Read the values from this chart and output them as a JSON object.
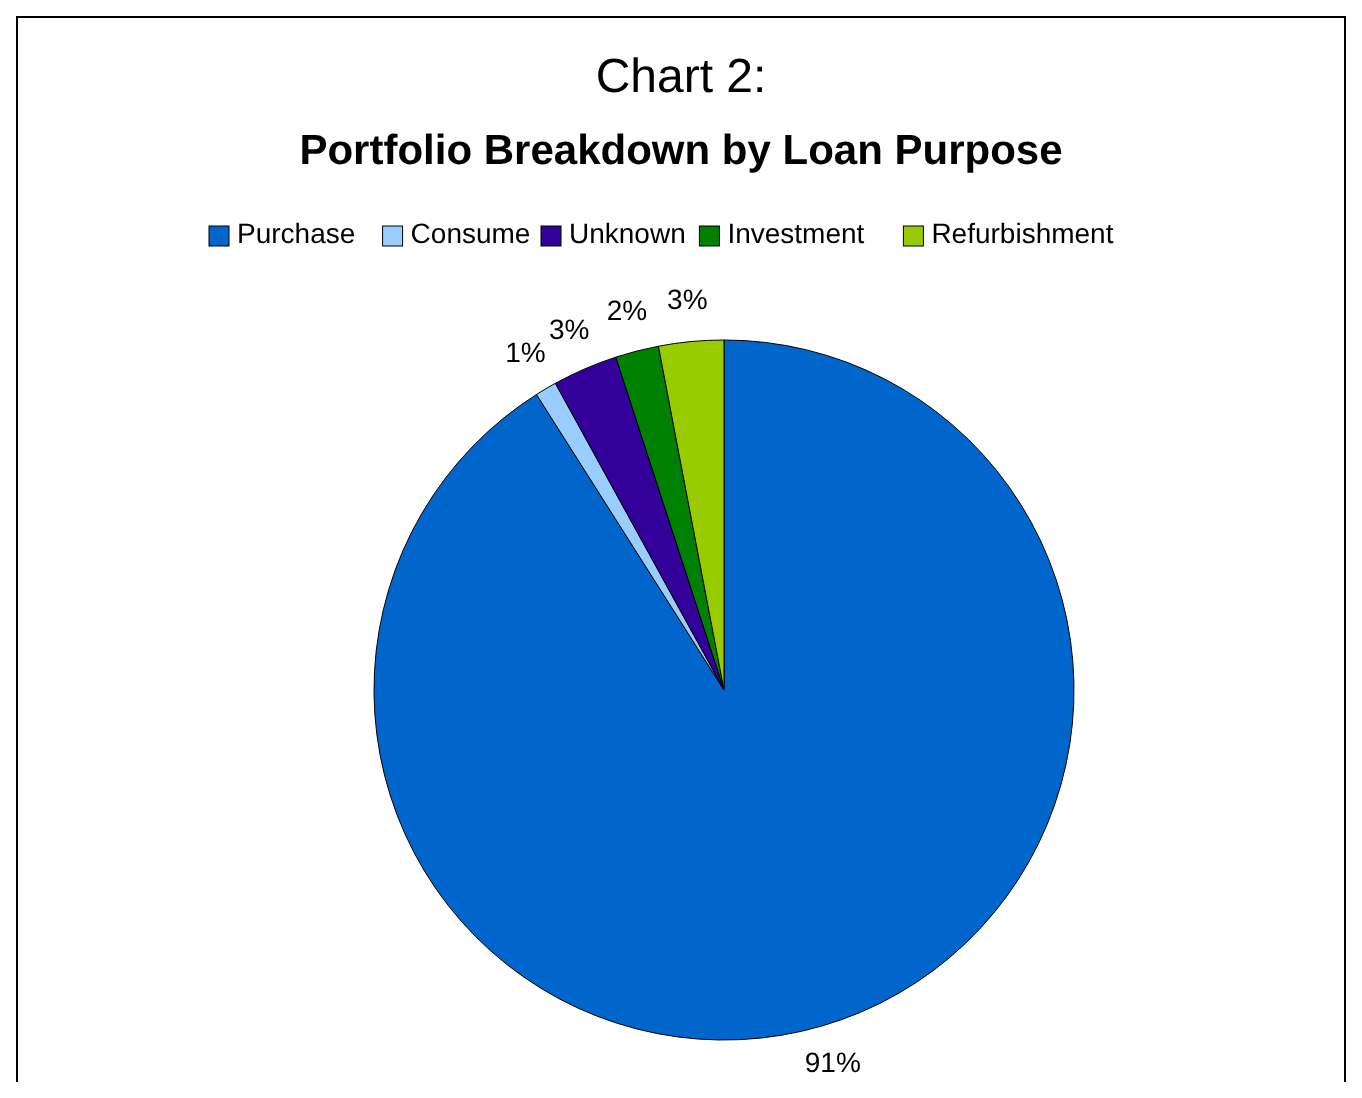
{
  "chart_data": {
    "type": "pie",
    "title": "Chart 2:",
    "subtitle": "Portfolio Breakdown by Loan Purpose",
    "categories": [
      "Purchase",
      "Consume",
      "Unknown",
      "Investment",
      "Refurbishment"
    ],
    "values": [
      91,
      1,
      3,
      2,
      3
    ],
    "colors": [
      "#0066cc",
      "#99ccff",
      "#330099",
      "#008000",
      "#99cc00"
    ],
    "value_labels": [
      "91%",
      "1%",
      "3%",
      "2%",
      "3%"
    ],
    "legend": "top"
  }
}
